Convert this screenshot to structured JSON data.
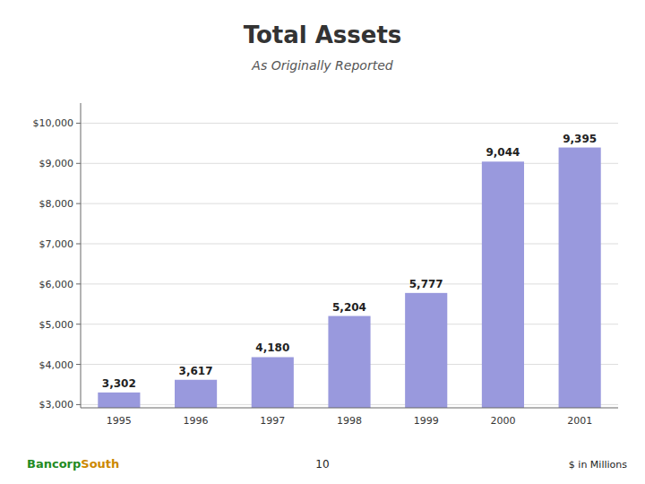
{
  "chart_data": {
    "type": "bar",
    "title": "Total Assets",
    "subtitle": "As Originally Reported",
    "categories": [
      "1995",
      "1996",
      "1997",
      "1998",
      "1999",
      "2000",
      "2001"
    ],
    "values": [
      3302,
      3617,
      4180,
      5204,
      5777,
      9044,
      9395
    ],
    "value_labels": [
      "3,302",
      "3,617",
      "4,180",
      "5,204",
      "5,777",
      "9,044",
      "9,395"
    ],
    "data_labels": true,
    "color": "#9999dd",
    "ylim": [
      2920,
      10500
    ],
    "yticks": [
      {
        "value": 3000,
        "label": "$3,000"
      },
      {
        "value": 4000,
        "label": "$4,000"
      },
      {
        "value": 5000,
        "label": "$5,000"
      },
      {
        "value": 6000,
        "label": "$6,000"
      },
      {
        "value": 7000,
        "label": "$7,000"
      },
      {
        "value": 8000,
        "label": "$8,000"
      },
      {
        "value": 9000,
        "label": "$9,000"
      },
      {
        "value": 10000,
        "label": "$10,000"
      }
    ],
    "grid": true,
    "annotations": [
      "10",
      "$ in Millions",
      "Bancorp",
      "South"
    ]
  }
}
